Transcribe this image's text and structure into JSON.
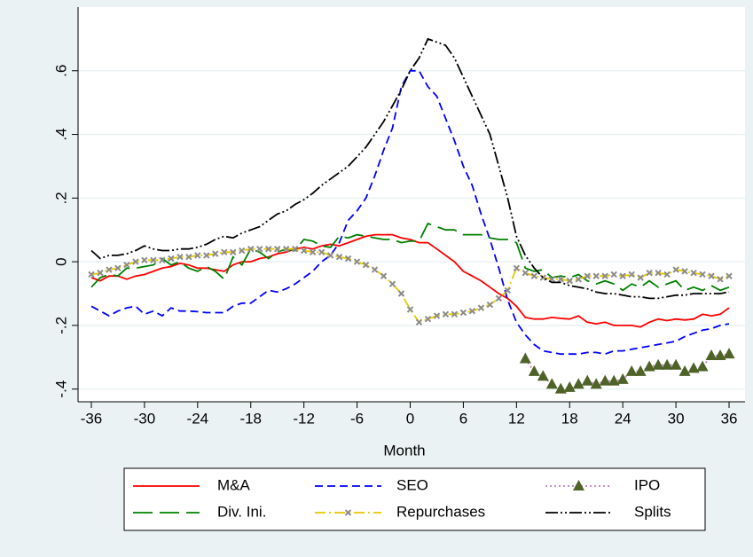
{
  "chart_data": {
    "type": "line",
    "x_label": "Month",
    "x": [
      -36,
      -35,
      -34,
      -33,
      -32,
      -31,
      -30,
      -29,
      -28,
      -27,
      -26,
      -25,
      -24,
      -23,
      -22,
      -21,
      -20,
      -19,
      -18,
      -17,
      -16,
      -15,
      -14,
      -13,
      -12,
      -11,
      -10,
      -9,
      -8,
      -7,
      -6,
      -5,
      -4,
      -3,
      -2,
      -1,
      0,
      1,
      2,
      3,
      4,
      5,
      6,
      7,
      8,
      9,
      10,
      11,
      12,
      13,
      14,
      15,
      16,
      17,
      18,
      19,
      20,
      21,
      22,
      23,
      24,
      25,
      26,
      27,
      28,
      29,
      30,
      31,
      32,
      33,
      34,
      35,
      36
    ],
    "xlim": [
      -37.5,
      37.8
    ],
    "xticks": [
      -36,
      -30,
      -24,
      -18,
      -12,
      -6,
      0,
      6,
      12,
      18,
      24,
      30,
      36
    ],
    "ylim": [
      -0.44,
      0.8
    ],
    "yticks": [
      {
        "value": -0.4,
        "label": "-.4"
      },
      {
        "value": -0.2,
        "label": "-.2"
      },
      0,
      {
        "value": 0.2,
        "label": ".2"
      },
      {
        "value": 0.4,
        "label": ".4"
      },
      {
        "value": 0.6,
        "label": ".6"
      }
    ],
    "grid": true,
    "series": [
      {
        "name": "M&A",
        "color": "#ff0000",
        "values": [
          -0.05,
          -0.06,
          -0.045,
          -0.045,
          -0.055,
          -0.045,
          -0.04,
          -0.03,
          -0.02,
          -0.015,
          -0.005,
          -0.01,
          -0.02,
          -0.02,
          -0.025,
          -0.03,
          -0.01,
          0.0,
          0.0,
          0.01,
          0.015,
          0.025,
          0.03,
          0.04,
          0.045,
          0.04,
          0.05,
          0.055,
          0.05,
          0.06,
          0.07,
          0.08,
          0.085,
          0.085,
          0.085,
          0.075,
          0.07,
          0.06,
          0.06,
          0.04,
          0.02,
          0.0,
          -0.03,
          -0.045,
          -0.06,
          -0.08,
          -0.1,
          -0.115,
          -0.14,
          -0.175,
          -0.18,
          -0.18,
          -0.175,
          -0.178,
          -0.18,
          -0.17,
          -0.19,
          -0.195,
          -0.19,
          -0.2,
          -0.2,
          -0.2,
          -0.205,
          -0.19,
          -0.18,
          -0.185,
          -0.18,
          -0.183,
          -0.18,
          -0.165,
          -0.17,
          -0.165,
          -0.145
        ]
      },
      {
        "name": "SEO",
        "color": "#0000ff",
        "values": [
          -0.14,
          -0.155,
          -0.17,
          -0.155,
          -0.145,
          -0.14,
          -0.165,
          -0.155,
          -0.17,
          -0.145,
          -0.155,
          -0.155,
          -0.157,
          -0.16,
          -0.16,
          -0.16,
          -0.14,
          -0.13,
          -0.13,
          -0.11,
          -0.09,
          -0.095,
          -0.085,
          -0.07,
          -0.05,
          -0.03,
          0.0,
          0.02,
          0.06,
          0.13,
          0.16,
          0.2,
          0.27,
          0.35,
          0.42,
          0.55,
          0.6,
          0.6,
          0.55,
          0.52,
          0.45,
          0.38,
          0.3,
          0.24,
          0.15,
          0.07,
          -0.02,
          -0.12,
          -0.19,
          -0.23,
          -0.26,
          -0.28,
          -0.285,
          -0.29,
          -0.29,
          -0.29,
          -0.285,
          -0.285,
          -0.29,
          -0.28,
          -0.28,
          -0.275,
          -0.27,
          -0.265,
          -0.26,
          -0.255,
          -0.25,
          -0.235,
          -0.225,
          -0.215,
          -0.21,
          -0.2,
          -0.195
        ]
      },
      {
        "name": "IPO",
        "color": "#c080c0",
        "marker": "triangle",
        "marker_color": "#4f6228",
        "values": [
          null,
          null,
          null,
          null,
          null,
          null,
          null,
          null,
          null,
          null,
          null,
          null,
          null,
          null,
          null,
          null,
          null,
          null,
          null,
          null,
          null,
          null,
          null,
          null,
          null,
          null,
          null,
          null,
          null,
          null,
          null,
          null,
          null,
          null,
          null,
          null,
          null,
          null,
          null,
          null,
          null,
          null,
          null,
          null,
          null,
          null,
          null,
          null,
          null,
          -0.305,
          -0.345,
          -0.36,
          -0.385,
          -0.4,
          -0.395,
          -0.385,
          -0.375,
          -0.385,
          -0.375,
          -0.375,
          -0.37,
          -0.345,
          -0.345,
          -0.33,
          -0.325,
          -0.325,
          -0.325,
          -0.345,
          -0.335,
          -0.33,
          -0.295,
          -0.295,
          -0.29
        ]
      },
      {
        "name": "Div. Ini.",
        "color": "#008000",
        "values": [
          -0.08,
          -0.05,
          -0.04,
          -0.045,
          -0.02,
          -0.02,
          -0.015,
          -0.01,
          0.01,
          -0.01,
          0.0,
          -0.02,
          -0.03,
          -0.015,
          -0.03,
          -0.055,
          0.015,
          -0.01,
          0.04,
          0.03,
          0.01,
          0.03,
          0.04,
          0.035,
          0.07,
          0.065,
          0.05,
          0.045,
          0.08,
          0.075,
          0.085,
          0.08,
          0.075,
          0.07,
          0.07,
          0.06,
          0.065,
          0.065,
          0.12,
          0.11,
          0.1,
          0.1,
          0.085,
          0.085,
          0.085,
          0.075,
          0.07,
          0.07,
          0.06,
          -0.02,
          -0.03,
          -0.025,
          -0.05,
          -0.045,
          -0.05,
          -0.04,
          -0.06,
          -0.07,
          -0.06,
          -0.07,
          -0.09,
          -0.07,
          -0.08,
          -0.06,
          -0.08,
          -0.07,
          -0.06,
          -0.09,
          -0.08,
          -0.09,
          -0.075,
          -0.09,
          -0.08
        ]
      },
      {
        "name": "Repurchases",
        "color": "#e6c800",
        "marker": "x",
        "marker_color": "#8c8c8c",
        "values": [
          -0.04,
          -0.035,
          -0.025,
          -0.02,
          -0.01,
          0.0,
          0.005,
          0.005,
          0.005,
          0.01,
          0.015,
          0.015,
          0.02,
          0.02,
          0.025,
          0.03,
          0.03,
          0.035,
          0.04,
          0.04,
          0.04,
          0.04,
          0.04,
          0.04,
          0.035,
          0.03,
          0.03,
          0.02,
          0.015,
          0.01,
          0.0,
          -0.01,
          -0.025,
          -0.045,
          -0.07,
          -0.1,
          -0.15,
          -0.19,
          -0.18,
          -0.17,
          -0.165,
          -0.165,
          -0.16,
          -0.155,
          -0.145,
          -0.135,
          -0.115,
          -0.09,
          -0.02,
          -0.035,
          -0.045,
          -0.05,
          -0.055,
          -0.055,
          -0.06,
          -0.055,
          -0.045,
          -0.045,
          -0.045,
          -0.04,
          -0.045,
          -0.04,
          -0.05,
          -0.035,
          -0.035,
          -0.04,
          -0.025,
          -0.03,
          -0.035,
          -0.04,
          -0.045,
          -0.055,
          -0.045
        ]
      },
      {
        "name": "Splits",
        "color": "#000000",
        "values": [
          0.035,
          0.01,
          0.02,
          0.02,
          0.025,
          0.035,
          0.05,
          0.04,
          0.035,
          0.035,
          0.04,
          0.04,
          0.045,
          0.055,
          0.07,
          0.08,
          0.075,
          0.09,
          0.1,
          0.11,
          0.13,
          0.15,
          0.16,
          0.18,
          0.195,
          0.215,
          0.24,
          0.26,
          0.28,
          0.3,
          0.33,
          0.36,
          0.4,
          0.44,
          0.49,
          0.54,
          0.6,
          0.64,
          0.7,
          0.69,
          0.68,
          0.64,
          0.58,
          0.52,
          0.46,
          0.4,
          0.3,
          0.2,
          0.08,
          0.02,
          -0.02,
          -0.05,
          -0.065,
          -0.065,
          -0.075,
          -0.08,
          -0.085,
          -0.095,
          -0.1,
          -0.1,
          -0.105,
          -0.11,
          -0.11,
          -0.115,
          -0.115,
          -0.11,
          -0.105,
          -0.105,
          -0.1,
          -0.1,
          -0.1,
          -0.1,
          -0.095
        ]
      }
    ]
  }
}
